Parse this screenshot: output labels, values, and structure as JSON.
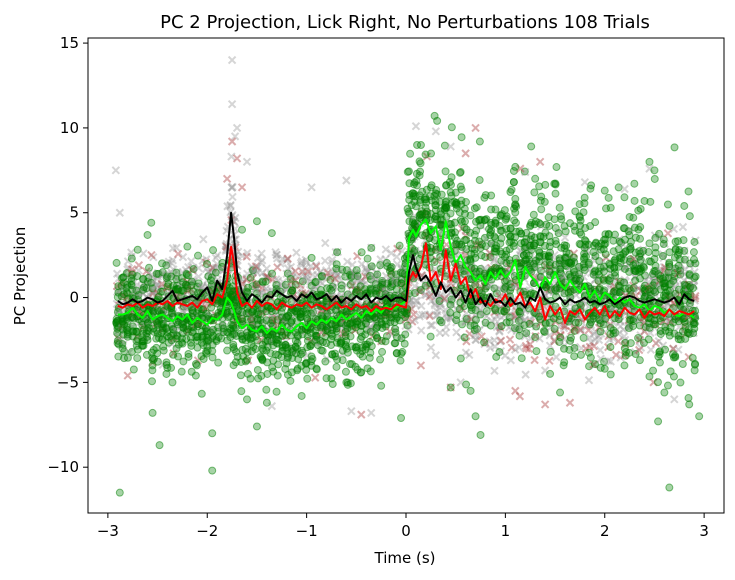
{
  "chart_data": {
    "type": "scatter",
    "title": "PC 2 Projection, Lick Right, No Perturbations 108 Trials",
    "xlabel": "Time (s)",
    "ylabel": "PC Projection",
    "xlim": [
      -3.2,
      3.2
    ],
    "ylim": [
      -12.7,
      15.3
    ],
    "xticks": [
      -3,
      -2,
      -1,
      0,
      1,
      2,
      3
    ],
    "xtick_labels": [
      "−3",
      "−2",
      "−1",
      "0",
      "1",
      "2",
      "3"
    ],
    "yticks": [
      -10,
      -5,
      0,
      5,
      10,
      15
    ],
    "ytick_labels": [
      "−10",
      "−5",
      "0",
      "5",
      "10",
      "15"
    ],
    "grid": false,
    "legend": "none",
    "scatter_layers": [
      {
        "marker": "x",
        "color": "#999999",
        "opacity": 0.4
      },
      {
        "marker": "x",
        "color": "#b04a4a",
        "opacity": 0.45
      },
      {
        "marker": "circle",
        "color": "#008000",
        "opacity": 0.35
      }
    ],
    "notable_points": {
      "gray_x": [
        [
          -2.92,
          7.5
        ],
        [
          -2.88,
          5.0
        ],
        [
          -1.75,
          14.0
        ],
        [
          -1.75,
          11.4
        ],
        [
          -1.72,
          9.5
        ],
        [
          -1.7,
          10.0
        ],
        [
          -1.6,
          8.0
        ],
        [
          -0.95,
          6.5
        ],
        [
          -0.6,
          6.9
        ],
        [
          0.1,
          10.1
        ],
        [
          0.3,
          9.8
        ],
        [
          0.45,
          8.9
        ],
        [
          1.2,
          7.4
        ],
        [
          2.45,
          7.6
        ],
        [
          1.8,
          6.8
        ],
        [
          2.2,
          6.4
        ],
        [
          -0.35,
          -6.8
        ],
        [
          -0.55,
          -6.7
        ],
        [
          -1.35,
          -6.4
        ],
        [
          2.7,
          -6.0
        ],
        [
          0.55,
          -5.0
        ],
        [
          1.4,
          -4.3
        ],
        [
          0.3,
          -3.4
        ]
      ],
      "red_x": [
        [
          0.7,
          10.0
        ],
        [
          0.6,
          8.5
        ],
        [
          1.35,
          8.0
        ],
        [
          1.15,
          7.6
        ],
        [
          -1.75,
          9.2
        ],
        [
          -1.7,
          8.2
        ],
        [
          -1.8,
          7.0
        ],
        [
          -1.65,
          6.5
        ],
        [
          -0.45,
          -6.9
        ],
        [
          1.4,
          -6.3
        ],
        [
          1.65,
          -6.2
        ],
        [
          0.45,
          -5.3
        ],
        [
          1.1,
          -5.5
        ],
        [
          0.15,
          -4.0
        ],
        [
          -2.8,
          -4.6
        ]
      ],
      "green_o": [
        [
          -2.88,
          -11.5
        ],
        [
          -1.95,
          -10.2
        ],
        [
          -1.95,
          -8.0
        ],
        [
          -2.48,
          -8.7
        ],
        [
          -2.55,
          -6.8
        ],
        [
          -1.5,
          -7.6
        ],
        [
          -1.6,
          -6.0
        ],
        [
          -2.35,
          -5.0
        ],
        [
          -1.4,
          -6.2
        ],
        [
          0.75,
          -8.1
        ],
        [
          0.7,
          -7.0
        ],
        [
          -0.05,
          -7.1
        ],
        [
          2.65,
          -11.2
        ],
        [
          2.95,
          -7.0
        ],
        [
          2.85,
          -6.3
        ],
        [
          2.6,
          -5.6
        ],
        [
          2.0,
          -4.2
        ],
        [
          1.55,
          -5.6
        ],
        [
          0.45,
          -5.3
        ],
        [
          0.65,
          -5.5
        ],
        [
          1.45,
          -4.5
        ],
        [
          2.45,
          8.0
        ],
        [
          2.5,
          7.5
        ],
        [
          2.0,
          6.3
        ],
        [
          2.3,
          5.7
        ],
        [
          2.8,
          5.4
        ],
        [
          1.1,
          7.7
        ],
        [
          1.3,
          7.0
        ],
        [
          0.55,
          7.4
        ],
        [
          -1.5,
          4.5
        ],
        [
          -1.65,
          4.0
        ],
        [
          -1.35,
          3.8
        ],
        [
          -2.2,
          3.0
        ],
        [
          -0.6,
          -5.0
        ],
        [
          -1.05,
          -5.8
        ],
        [
          -0.25,
          -5.2
        ]
      ]
    },
    "series": [
      {
        "color": "#000000",
        "x": [
          -2.9,
          -2.85,
          -2.8,
          -2.75,
          -2.7,
          -2.65,
          -2.6,
          -2.55,
          -2.5,
          -2.45,
          -2.4,
          -2.35,
          -2.3,
          -2.25,
          -2.2,
          -2.15,
          -2.1,
          -2.05,
          -2.0,
          -1.95,
          -1.9,
          -1.85,
          -1.8,
          -1.76,
          -1.73,
          -1.7,
          -1.65,
          -1.6,
          -1.55,
          -1.5,
          -1.45,
          -1.4,
          -1.35,
          -1.3,
          -1.25,
          -1.2,
          -1.15,
          -1.1,
          -1.05,
          -1.0,
          -0.95,
          -0.9,
          -0.85,
          -0.8,
          -0.75,
          -0.7,
          -0.65,
          -0.6,
          -0.55,
          -0.5,
          -0.45,
          -0.4,
          -0.35,
          -0.3,
          -0.25,
          -0.2,
          -0.15,
          -0.1,
          -0.05,
          0.0,
          0.03,
          0.07,
          0.1,
          0.15,
          0.2,
          0.25,
          0.3,
          0.35,
          0.4,
          0.45,
          0.5,
          0.55,
          0.6,
          0.65,
          0.7,
          0.75,
          0.8,
          0.85,
          0.9,
          0.95,
          1.0,
          1.05,
          1.1,
          1.15,
          1.2,
          1.25,
          1.3,
          1.35,
          1.4,
          1.45,
          1.5,
          1.55,
          1.6,
          1.65,
          1.7,
          1.75,
          1.8,
          1.85,
          1.9,
          1.95,
          2.0,
          2.05,
          2.1,
          2.15,
          2.2,
          2.25,
          2.3,
          2.35,
          2.4,
          2.45,
          2.5,
          2.55,
          2.6,
          2.65,
          2.7,
          2.75,
          2.8,
          2.85,
          2.9
        ],
        "y": [
          -0.2,
          -0.4,
          -0.3,
          -0.1,
          -0.3,
          -0.2,
          0.0,
          -0.1,
          -0.3,
          -0.2,
          0.1,
          0.4,
          -0.2,
          -0.1,
          0.0,
          0.1,
          -0.1,
          0.3,
          0.6,
          -0.2,
          1.0,
          0.5,
          2.5,
          5.0,
          3.5,
          1.5,
          0.3,
          -0.2,
          0.2,
          0.0,
          -0.3,
          0.1,
          0.0,
          0.4,
          0.2,
          0.0,
          0.1,
          -0.2,
          0.2,
          0.0,
          0.3,
          -0.1,
          0.0,
          0.2,
          -0.2,
          0.1,
          -0.3,
          0.0,
          -0.2,
          0.1,
          -0.1,
          0.2,
          -0.3,
          0.0,
          -0.1,
          0.1,
          -0.2,
          0.0,
          0.0,
          -0.2,
          1.5,
          2.5,
          1.8,
          1.0,
          1.3,
          0.8,
          0.1,
          0.9,
          0.3,
          0.6,
          0.0,
          0.4,
          -0.3,
          0.5,
          -0.4,
          0.0,
          -0.5,
          0.2,
          -0.3,
          -0.2,
          -0.5,
          0.0,
          -0.4,
          -0.3,
          -0.6,
          0.0,
          -0.2,
          0.6,
          -0.1,
          -0.3,
          -0.2,
          0.0,
          -0.4,
          -0.1,
          -0.3,
          -0.2,
          0.0,
          -0.3,
          -0.2,
          -0.4,
          -0.3,
          -0.1,
          -0.4,
          -0.2,
          0.0,
          0.1,
          0.0,
          -0.2,
          -0.3,
          -0.2,
          -0.1,
          -0.2,
          -0.3,
          -0.2,
          0.0,
          -0.4,
          0.2,
          -0.1,
          -0.2
        ]
      },
      {
        "color": "#ff0000",
        "x": [
          -2.9,
          -2.85,
          -2.8,
          -2.75,
          -2.7,
          -2.65,
          -2.6,
          -2.55,
          -2.5,
          -2.45,
          -2.4,
          -2.35,
          -2.3,
          -2.25,
          -2.2,
          -2.15,
          -2.1,
          -2.05,
          -2.0,
          -1.95,
          -1.9,
          -1.85,
          -1.8,
          -1.76,
          -1.73,
          -1.7,
          -1.65,
          -1.6,
          -1.55,
          -1.5,
          -1.45,
          -1.4,
          -1.35,
          -1.3,
          -1.25,
          -1.2,
          -1.15,
          -1.1,
          -1.05,
          -1.0,
          -0.95,
          -0.9,
          -0.85,
          -0.8,
          -0.75,
          -0.7,
          -0.65,
          -0.6,
          -0.55,
          -0.5,
          -0.45,
          -0.4,
          -0.35,
          -0.3,
          -0.25,
          -0.2,
          -0.15,
          -0.1,
          -0.05,
          0.0,
          0.03,
          0.07,
          0.1,
          0.15,
          0.2,
          0.25,
          0.3,
          0.35,
          0.4,
          0.45,
          0.5,
          0.55,
          0.6,
          0.65,
          0.7,
          0.75,
          0.8,
          0.85,
          0.9,
          0.95,
          1.0,
          1.05,
          1.1,
          1.15,
          1.2,
          1.25,
          1.3,
          1.35,
          1.4,
          1.45,
          1.5,
          1.55,
          1.6,
          1.65,
          1.7,
          1.75,
          1.8,
          1.85,
          1.9,
          1.95,
          2.0,
          2.05,
          2.1,
          2.15,
          2.2,
          2.25,
          2.3,
          2.35,
          2.4,
          2.45,
          2.5,
          2.55,
          2.6,
          2.65,
          2.7,
          2.75,
          2.8,
          2.85,
          2.9
        ],
        "y": [
          -0.5,
          -0.6,
          -0.4,
          -0.5,
          -0.3,
          -0.6,
          -0.4,
          -0.5,
          -0.3,
          -0.4,
          -0.2,
          -0.5,
          -0.3,
          -0.4,
          -0.5,
          -0.3,
          -0.6,
          -0.2,
          -0.1,
          -0.4,
          0.2,
          0.0,
          1.0,
          3.0,
          2.0,
          0.3,
          -0.5,
          -0.3,
          -0.6,
          -0.2,
          -0.5,
          -0.3,
          -0.4,
          -0.7,
          -0.3,
          -0.5,
          -0.6,
          -0.4,
          -0.5,
          -0.3,
          -0.6,
          -0.4,
          -0.5,
          -0.7,
          -0.5,
          -0.3,
          -0.6,
          -0.5,
          -0.7,
          -0.4,
          -0.6,
          -0.5,
          -0.8,
          -0.5,
          -0.7,
          -0.6,
          -0.7,
          -0.4,
          -0.5,
          -0.6,
          1.0,
          1.5,
          1.2,
          1.8,
          3.2,
          1.0,
          1.5,
          0.5,
          2.8,
          1.0,
          2.0,
          0.8,
          1.2,
          0.0,
          0.5,
          -0.3,
          -0.2,
          -0.5,
          -0.1,
          -0.3,
          0.2,
          -0.5,
          -0.2,
          0.3,
          -0.5,
          -0.3,
          -0.8,
          0.0,
          -1.3,
          -0.5,
          -1.0,
          -0.6,
          -1.5,
          -0.8,
          -1.0,
          -0.7,
          -1.3,
          -0.9,
          -0.6,
          -1.0,
          -0.5,
          -1.2,
          -0.8,
          -1.1,
          -0.6,
          -0.9,
          -1.0,
          -0.7,
          -1.2,
          -0.8,
          -1.0,
          -0.9,
          -1.1,
          -0.7,
          -1.0,
          -0.8,
          -0.9,
          -1.0,
          -0.8
        ]
      },
      {
        "color": "#00ff00",
        "x": [
          -2.9,
          -2.85,
          -2.8,
          -2.75,
          -2.7,
          -2.65,
          -2.6,
          -2.55,
          -2.5,
          -2.45,
          -2.4,
          -2.35,
          -2.3,
          -2.25,
          -2.2,
          -2.15,
          -2.1,
          -2.05,
          -2.0,
          -1.95,
          -1.9,
          -1.85,
          -1.8,
          -1.76,
          -1.73,
          -1.7,
          -1.65,
          -1.6,
          -1.55,
          -1.5,
          -1.45,
          -1.4,
          -1.35,
          -1.3,
          -1.25,
          -1.2,
          -1.15,
          -1.1,
          -1.05,
          -1.0,
          -0.95,
          -0.9,
          -0.85,
          -0.8,
          -0.75,
          -0.7,
          -0.65,
          -0.6,
          -0.55,
          -0.5,
          -0.45,
          -0.4,
          -0.35,
          -0.3,
          -0.25,
          -0.2,
          -0.15,
          -0.1,
          -0.05,
          0.0,
          0.03,
          0.07,
          0.1,
          0.15,
          0.2,
          0.25,
          0.3,
          0.35,
          0.4,
          0.45,
          0.5,
          0.55,
          0.6,
          0.65,
          0.7,
          0.75,
          0.8,
          0.85,
          0.9,
          0.95,
          1.0,
          1.05,
          1.1,
          1.15,
          1.2,
          1.25,
          1.3,
          1.35,
          1.4,
          1.45,
          1.5,
          1.55,
          1.6,
          1.65,
          1.7,
          1.75,
          1.8,
          1.85,
          1.9,
          1.95,
          2.0,
          2.05,
          2.1,
          2.15,
          2.2,
          2.25,
          2.3,
          2.35,
          2.4,
          2.45,
          2.5,
          2.55,
          2.6,
          2.65,
          2.7,
          2.75,
          2.8,
          2.85,
          2.9
        ],
        "y": [
          -1.0,
          -1.0,
          -0.9,
          -0.6,
          -1.0,
          -1.2,
          -0.8,
          -1.3,
          -1.1,
          -1.0,
          -1.2,
          -1.4,
          -1.1,
          -1.3,
          -1.0,
          -1.5,
          -1.2,
          -1.4,
          -1.6,
          -1.2,
          -1.3,
          -1.0,
          0.0,
          -0.3,
          -0.8,
          -1.4,
          -1.8,
          -1.6,
          -1.9,
          -2.0,
          -1.7,
          -2.1,
          -1.8,
          -2.0,
          -1.6,
          -1.9,
          -2.0,
          -1.7,
          -1.5,
          -1.8,
          -1.4,
          -1.6,
          -1.3,
          -1.5,
          -1.2,
          -1.4,
          -1.0,
          -1.3,
          -1.1,
          -0.9,
          -1.2,
          -0.8,
          -1.0,
          -0.7,
          -0.9,
          -0.5,
          -0.7,
          -0.6,
          -0.4,
          -0.2,
          3.5,
          4.0,
          3.6,
          4.3,
          4.6,
          3.8,
          4.2,
          2.8,
          4.5,
          3.0,
          2.0,
          2.5,
          1.8,
          1.5,
          1.0,
          1.3,
          0.8,
          1.5,
          1.1,
          1.6,
          1.2,
          1.5,
          2.2,
          0.6,
          1.8,
          1.3,
          1.0,
          0.5,
          1.2,
          0.8,
          1.5,
          0.8,
          0.5,
          1.0,
          0.6,
          0.3,
          0.8,
          0.0,
          0.4,
          -0.2,
          0.3,
          0.1,
          -0.3,
          0.0,
          -0.3,
          -0.1,
          -0.5,
          -0.6,
          -0.4,
          -0.8,
          -0.5,
          -0.6,
          -0.9,
          -0.7,
          -1.0,
          -1.1,
          -0.9,
          -1.0,
          -1.2
        ]
      }
    ]
  }
}
